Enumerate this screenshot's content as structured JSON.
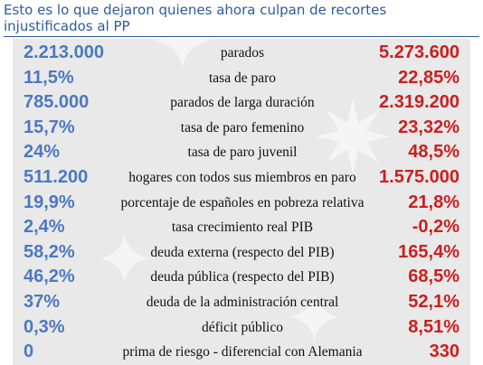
{
  "headline": {
    "line1": "Esto es lo que dejaron quienes ahora culpan de recortes",
    "line2": "injustificados al PP"
  },
  "colors": {
    "left_values": "#4d78c1",
    "right_values": "#cc1e1e",
    "headline": "#2d5b9c",
    "panel": "#e9e9e9"
  },
  "rows": [
    {
      "left": "2.213.000",
      "label": "parados",
      "right": "5.273.600"
    },
    {
      "left": "11,5%",
      "label": "tasa de paro",
      "right": "22,85%"
    },
    {
      "left": "785.000",
      "label": "parados de larga duración",
      "right": "2.319.200"
    },
    {
      "left": "15,7%",
      "label": "tasa de paro femenino",
      "right": "23,32%"
    },
    {
      "left": "24%",
      "label": "tasa de paro juvenil",
      "right": "48,5%"
    },
    {
      "left": "511.200",
      "label": "hogares con todos sus miembros en paro",
      "right": "1.575.000"
    },
    {
      "left": "19,9%",
      "label": "porcentaje de españoles en pobreza relativa",
      "right": "21,8%"
    },
    {
      "left": "2,4%",
      "label": "tasa crecimiento real PIB",
      "right": "-0,2%"
    },
    {
      "left": "58,2%",
      "label": "deuda externa (respecto del PIB)",
      "right": "165,4%"
    },
    {
      "left": "46,2%",
      "label": "deuda pública (respecto del PIB)",
      "right": "68,5%"
    },
    {
      "left": "37%",
      "label": "deuda de la administración central",
      "right": "52,1%"
    },
    {
      "left": "0,3%",
      "label": "déficit público",
      "right": "8,51%"
    },
    {
      "left": "0",
      "label": "prima de riesgo - diferencial con Alemania",
      "right": "330"
    }
  ]
}
